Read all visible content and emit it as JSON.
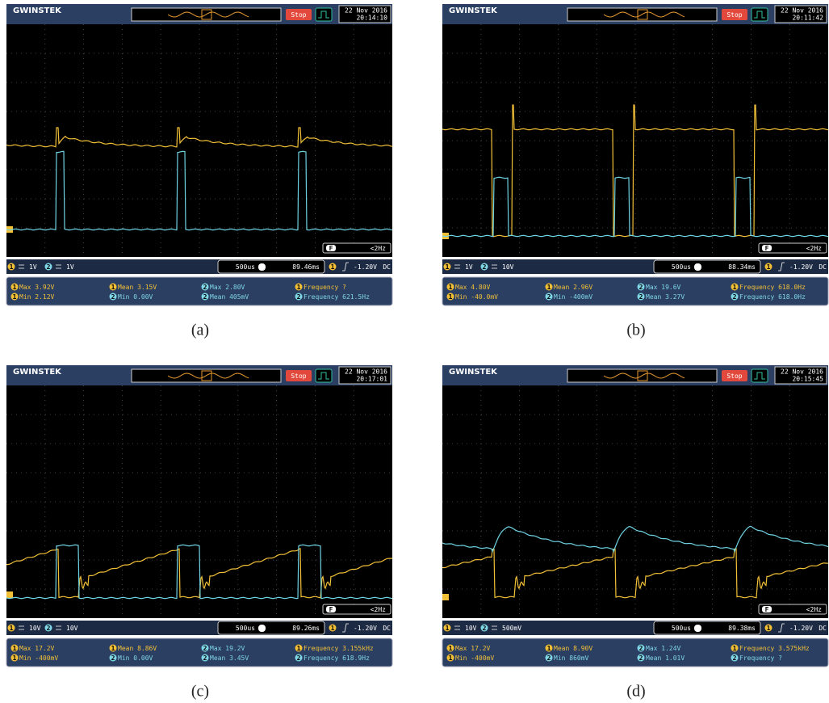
{
  "panels": [
    {
      "caption": "(a)",
      "logo": "GWINSTEK",
      "status": "Stop",
      "date": "22 Nov 2016",
      "time": "20:14:10",
      "freq_counter": {
        "icon": "F",
        "value": "<2Hz"
      },
      "channels": [
        {
          "ch": "1",
          "scale": "1V"
        },
        {
          "ch": "2",
          "scale": "1V"
        }
      ],
      "timebase": "500us",
      "position": "89.46ms",
      "trigger": {
        "source": "1",
        "level": "-1.20V",
        "coupling": "DC"
      },
      "measurements": [
        {
          "ch": "1",
          "label": "Max 3.92V"
        },
        {
          "ch": "1",
          "label": "Min 2.12V"
        },
        {
          "ch": "1",
          "label": "Mean 3.15V"
        },
        {
          "ch": "2",
          "label": "Min 0.00V"
        },
        {
          "ch": "2",
          "label": "Max 2.80V"
        },
        {
          "ch": "2",
          "label": "Mean 405mV"
        },
        {
          "ch": "1",
          "label": "Frequency ?"
        },
        {
          "ch": "2",
          "label": "Frequency 621.5Hz"
        }
      ]
    },
    {
      "caption": "(b)",
      "logo": "GWINSTEK",
      "status": "Stop",
      "date": "22 Nov 2016",
      "time": "20:11:42",
      "freq_counter": {
        "icon": "F",
        "value": "<2Hz"
      },
      "channels": [
        {
          "ch": "1",
          "scale": "1V"
        },
        {
          "ch": "2",
          "scale": "10V"
        }
      ],
      "timebase": "500us",
      "position": "88.34ms",
      "trigger": {
        "source": "1",
        "level": "-1.20V",
        "coupling": "DC"
      },
      "measurements": [
        {
          "ch": "1",
          "label": "Max 4.80V"
        },
        {
          "ch": "1",
          "label": "Min -40.0mV"
        },
        {
          "ch": "1",
          "label": "Mean 2.96V"
        },
        {
          "ch": "2",
          "label": "Min -400mV"
        },
        {
          "ch": "2",
          "label": "Max 19.6V"
        },
        {
          "ch": "2",
          "label": "Mean 3.27V"
        },
        {
          "ch": "1",
          "label": "Frequency 618.0Hz"
        },
        {
          "ch": "2",
          "label": "Frequency 618.0Hz"
        }
      ]
    },
    {
      "caption": "(c)",
      "logo": "GWINSTEK",
      "status": "Stop",
      "date": "22 Nov 2016",
      "time": "20:17:01",
      "freq_counter": {
        "icon": "F",
        "value": "<2Hz"
      },
      "channels": [
        {
          "ch": "1",
          "scale": "10V"
        },
        {
          "ch": "2",
          "scale": "10V"
        }
      ],
      "timebase": "500us",
      "position": "89.26ms",
      "trigger": {
        "source": "1",
        "level": "-1.20V",
        "coupling": "DC"
      },
      "measurements": [
        {
          "ch": "1",
          "label": "Max 17.2V"
        },
        {
          "ch": "1",
          "label": "Min -400mV"
        },
        {
          "ch": "1",
          "label": "Mean 8.86V"
        },
        {
          "ch": "2",
          "label": "Min 0.00V"
        },
        {
          "ch": "2",
          "label": "Max 19.2V"
        },
        {
          "ch": "2",
          "label": "Mean 3.45V"
        },
        {
          "ch": "1",
          "label": "Frequency 3.155kHz"
        },
        {
          "ch": "2",
          "label": "Frequency 618.9Hz"
        }
      ]
    },
    {
      "caption": "(d)",
      "logo": "GWINSTEK",
      "status": "Stop",
      "date": "22 Nov 2016",
      "time": "20:15:45",
      "freq_counter": {
        "icon": "F",
        "value": "<2Hz"
      },
      "channels": [
        {
          "ch": "1",
          "scale": "10V"
        },
        {
          "ch": "2",
          "scale": "500mV"
        }
      ],
      "timebase": "500us",
      "position": "89.38ms",
      "trigger": {
        "source": "1",
        "level": "-1.20V",
        "coupling": "DC"
      },
      "measurements": [
        {
          "ch": "1",
          "label": "Max 17.2V"
        },
        {
          "ch": "1",
          "label": "Min -400mV"
        },
        {
          "ch": "1",
          "label": "Mean 8.90V"
        },
        {
          "ch": "2",
          "label": "Min 860mV"
        },
        {
          "ch": "2",
          "label": "Max 1.24V"
        },
        {
          "ch": "2",
          "label": "Mean 1.01V"
        },
        {
          "ch": "1",
          "label": "Frequency 3.575kHz"
        },
        {
          "ch": "2",
          "label": "Frequency ?"
        }
      ]
    }
  ]
}
